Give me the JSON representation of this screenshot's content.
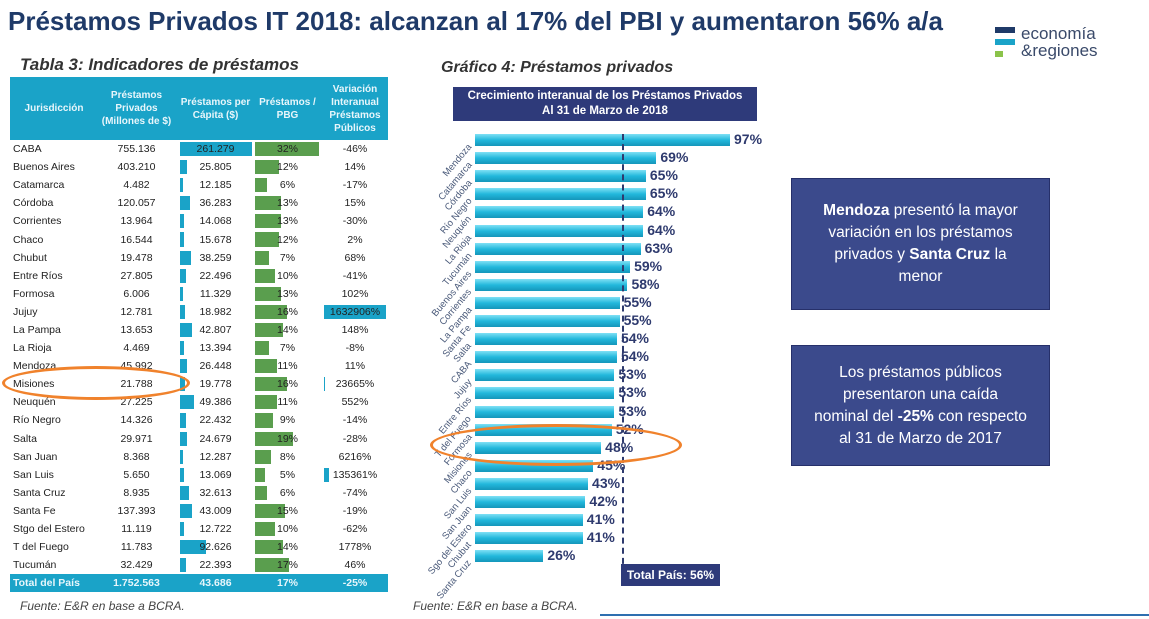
{
  "title": "Préstamos Privados IT 2018: alcanzan al 17% del PBI y aumentaron 56% a/a",
  "logo": {
    "line1": "economía",
    "line2": "&regiones",
    "colors": [
      "#1f3a68",
      "#1aa3c8",
      "#8bc34a"
    ]
  },
  "table": {
    "caption": "Tabla 3: Indicadores de préstamos",
    "headers": [
      "Jurisdicción",
      "Préstamos Privados (Millones de $)",
      "Préstamos per Cápita ($)",
      "Préstamos / PBG",
      "Variación Interanual Préstamos Públicos"
    ],
    "rows": [
      [
        "CABA",
        "755.136",
        "261.279",
        "32%",
        "-46%"
      ],
      [
        "Buenos Aires",
        "403.210",
        "25.805",
        "12%",
        "14%"
      ],
      [
        "Catamarca",
        "4.482",
        "12.185",
        "6%",
        "-17%"
      ],
      [
        "Córdoba",
        "120.057",
        "36.283",
        "13%",
        "15%"
      ],
      [
        "Corrientes",
        "13.964",
        "14.068",
        "13%",
        "-30%"
      ],
      [
        "Chaco",
        "16.544",
        "15.678",
        "12%",
        "2%"
      ],
      [
        "Chubut",
        "19.478",
        "38.259",
        "7%",
        "68%"
      ],
      [
        "Entre Ríos",
        "27.805",
        "22.496",
        "10%",
        "-41%"
      ],
      [
        "Formosa",
        "6.006",
        "11.329",
        "13%",
        "102%"
      ],
      [
        "Jujuy",
        "12.781",
        "18.982",
        "16%",
        "1632906%"
      ],
      [
        "La Pampa",
        "13.653",
        "42.807",
        "14%",
        "148%"
      ],
      [
        "La Rioja",
        "4.469",
        "13.394",
        "7%",
        "-8%"
      ],
      [
        "Mendoza",
        "45.992",
        "26.448",
        "11%",
        "11%"
      ],
      [
        "Misiones",
        "21.788",
        "19.778",
        "16%",
        "23665%"
      ],
      [
        "Neuquén",
        "27.225",
        "49.386",
        "11%",
        "552%"
      ],
      [
        "Río Negro",
        "14.326",
        "22.432",
        "9%",
        "-14%"
      ],
      [
        "Salta",
        "29.971",
        "24.679",
        "19%",
        "-28%"
      ],
      [
        "San Juan",
        "8.368",
        "12.287",
        "8%",
        "6216%"
      ],
      [
        "San Luis",
        "5.650",
        "13.069",
        "5%",
        "135361%"
      ],
      [
        "Santa Cruz",
        "8.935",
        "32.613",
        "6%",
        "-74%"
      ],
      [
        "Santa Fe",
        "137.393",
        "43.009",
        "15%",
        "-19%"
      ],
      [
        "Stgo del Estero",
        "11.119",
        "12.722",
        "10%",
        "-62%"
      ],
      [
        "T del Fuego",
        "11.783",
        "92.626",
        "14%",
        "1778%"
      ],
      [
        "Tucumán",
        "32.429",
        "22.393",
        "17%",
        "46%"
      ]
    ],
    "total": [
      "Total del País",
      "1.752.563",
      "43.686",
      "17%",
      "-25%"
    ],
    "highlight": "Misiones",
    "colors": {
      "header": "#1aa3c8",
      "percapita_bar": "#1aa3c8",
      "pbg_bar": "#5a9e4e",
      "highlight_ring": "#f0822c"
    }
  },
  "source_left": "Fuente: E&R en base a BCRA.",
  "source_right": "Fuente: E&R en base a BCRA.",
  "chart_data": {
    "type": "bar",
    "orientation": "horizontal",
    "caption": "Gráfico 4: Préstamos privados",
    "title": "Crecimiento interanual de los  Préstamos Privados",
    "subtitle": "Al 31 de Marzo  de 2018",
    "categories": [
      "Mendoza",
      "Catamarca",
      "Córdoba",
      "Río Negro",
      "Neuquén",
      "La Rioja",
      "Tucumán",
      "Buenos Aires",
      "Corrientes",
      "La Pampa",
      "Santa Fe",
      "Salta",
      "CABA",
      "Jujuy",
      "Entre Ríos",
      "T del Fuego",
      "Formosa",
      "Misiones",
      "Chaco",
      "San Luis",
      "San Juan",
      "Sgo del Estero",
      "Chubut",
      "Santa Cruz"
    ],
    "values": [
      97,
      69,
      65,
      65,
      64,
      64,
      63,
      59,
      58,
      55,
      55,
      54,
      54,
      53,
      53,
      53,
      52,
      48,
      45,
      43,
      42,
      41,
      41,
      26
    ],
    "labels": [
      "97%",
      "69%",
      "65%",
      "65%",
      "64%",
      "64%",
      "63%",
      "59%",
      "58%",
      "55%",
      "55%",
      "54%",
      "54%",
      "53%",
      "53%",
      "53%",
      "52%",
      "48%",
      "45%",
      "43%",
      "42%",
      "41%",
      "41%",
      "26%"
    ],
    "reference_line": {
      "value": 56,
      "label": "Total País: 56%"
    },
    "highlight": "Misiones",
    "bar_color": "#22b8dc"
  },
  "callouts": {
    "box1": {
      "bold1": "Mendoza",
      "text1": " presentó la mayor variación en los préstamos privados y ",
      "bold2": "Santa Cruz",
      "text2": " la menor"
    },
    "box2": {
      "text1": "Los préstamos públicos presentaron una caída nominal del ",
      "bold": "-25%",
      "text2": " con respecto al 31 de  Marzo de 2017"
    }
  }
}
